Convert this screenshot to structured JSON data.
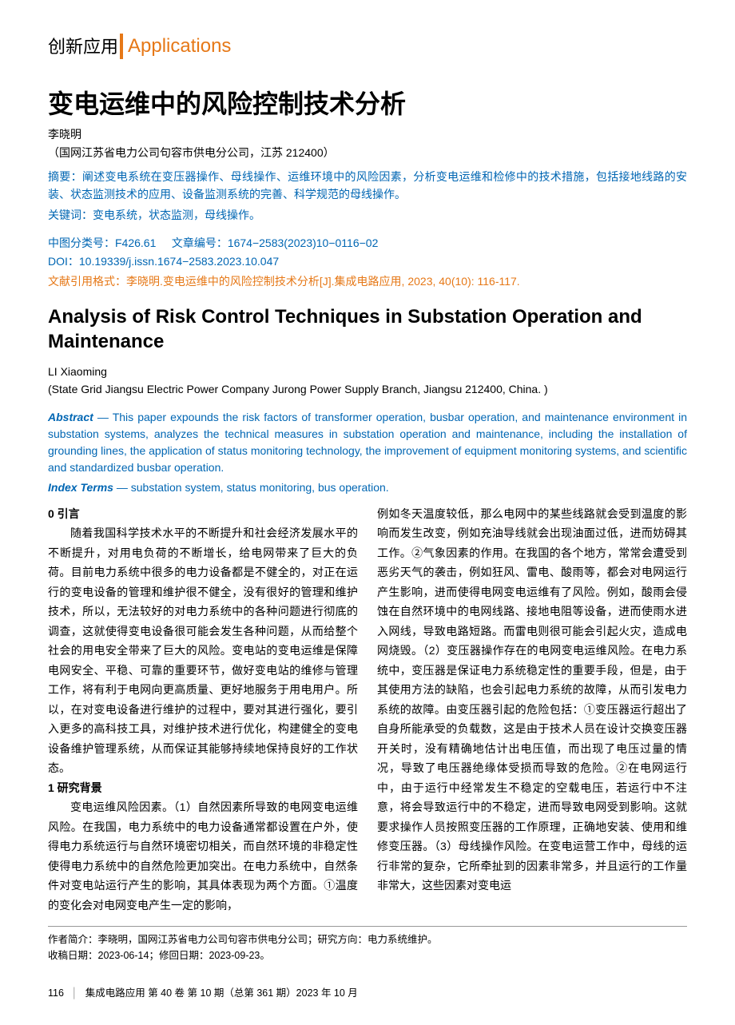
{
  "section_header": {
    "cn": "创新应用",
    "en": "Applications"
  },
  "title_cn": "变电运维中的风险控制技术分析",
  "authors_cn": "李晓明",
  "affiliation_cn": "（国网江苏省电力公司句容市供电分公司，江苏 212400）",
  "abstract_cn": "摘要：阐述变电系统在变压器操作、母线操作、运维环境中的风险因素，分析变电运维和检修中的技术措施，包括接地线路的安装、状态监测技术的应用、设备监测系统的完善、科学规范的母线操作。",
  "keywords_cn": "关键词：变电系统，状态监测，母线操作。",
  "meta": {
    "clc": "中图分类号：F426.61",
    "article_id": "文章编号：1674−2583(2023)10−0116−02",
    "doi": "DOI：10.19339/j.issn.1674−2583.2023.10.047"
  },
  "citation": "文献引用格式：李晓明.变电运维中的风险控制技术分析[J].集成电路应用, 2023, 40(10): 116-117.",
  "title_en": "Analysis of Risk Control Techniques in Substation Operation and Maintenance",
  "authors_en": "LI Xiaoming",
  "affiliation_en": "(State Grid Jiangsu Electric Power Company Jurong Power Supply Branch, Jiangsu 212400, China. )",
  "abstract_en_label": "Abstract",
  "abstract_en_text": " — This paper expounds the risk factors of transformer operation, busbar operation, and maintenance environment in substation systems, analyzes the technical measures in substation operation and maintenance, including the installation of grounding lines, the application of status monitoring technology, the improvement of equipment monitoring systems, and scientific and standardized busbar operation.",
  "index_terms_label": "Index Terms",
  "index_terms_text": " — substation system, status monitoring, bus operation.",
  "body": {
    "heading0": "0  引言",
    "para0": "随着我国科学技术水平的不断提升和社会经济发展水平的不断提升，对用电负荷的不断增长，给电网带来了巨大的负荷。目前电力系统中很多的电力设备都是不健全的，对正在运行的变电设备的管理和维护很不健全，没有很好的管理和维护技术，所以，无法较好的对电力系统中的各种问题进行彻底的调查，这就使得变电设备很可能会发生各种问题，从而给整个社会的用电安全带来了巨大的风险。变电站的变电运维是保障电网安全、平稳、可靠的重要环节，做好变电站的维修与管理工作，将有利于电网向更高质量、更好地服务于用电用户。所以，在对变电设备进行维护的过程中，要对其进行强化，要引入更多的高科技工具，对维护技术进行优化，构建健全的变电设备维护管理系统，从而保证其能够持续地保持良好的工作状态。",
    "heading1": "1  研究背景",
    "para1a": "变电运维风险因素。（1）自然因素所导致的电网变电运维风险。在我国，电力系统中的电力设备通常都设置在户外，使得电力系统运行与自然环境密切相关，而自然环境的非稳定性使得电力系统中的自然危险更加突出。在电力系统中，自然条件对变电站运行产生的影响，其具体表现为两个方面。①温度的变化会对电网变电产生一定的影响，",
    "para1b": "例如冬天温度较低，那么电网中的某些线路就会受到温度的影响而发生改变，例如充油导线就会出现油面过低，进而妨碍其工作。②气象因素的作用。在我国的各个地方，常常会遭受到恶劣天气的袭击，例如狂风、雷电、酸雨等，都会对电网运行产生影响，进而使得电网变电运维有了风险。例如，酸雨会侵蚀在自然环境中的电网线路、接地电阻等设备，进而使雨水进入网线，导致电路短路。而雷电则很可能会引起火灾，造成电网烧毁。（2）变压器操作存在的电网变电运维风险。在电力系统中，变压器是保证电力系统稳定性的重要手段，但是，由于其使用方法的缺陷，也会引起电力系统的故障，从而引发电力系统的故障。由变压器引起的危险包括：①变压器运行超出了自身所能承受的负载数，这是由于技术人员在设计交换变压器开关时，没有精确地估计出电压值，而出现了电压过量的情况，导致了电压器绝缘体受损而导致的危险。②在电网运行中，由于运行中经常发生不稳定的空载电压，若运行中不注意，将会导致运行中的不稳定，进而导致电网受到影响。这就要求操作人员按照变压器的工作原理，正确地安装、使用和维修变压器。（3）母线操作风险。在变电运营工作中，母线的运行非常的复杂，它所牵扯到的因素非常多，并且运行的工作量非常大，这些因素对变电运"
  },
  "author_info": {
    "line1": "作者简介：李晓明，国网江苏省电力公司句容市供电分公司；研究方向：电力系统维护。",
    "line2": "收稿日期：2023-06-14；修回日期：2023-09-23。"
  },
  "footer": {
    "page": "116",
    "journal": "集成电路应用  第 40 卷 第 10 期（总第 361 期）2023 年 10 月"
  },
  "colors": {
    "accent_orange": "#e67817",
    "accent_blue": "#0066b3",
    "text": "#000000",
    "background": "#ffffff"
  }
}
